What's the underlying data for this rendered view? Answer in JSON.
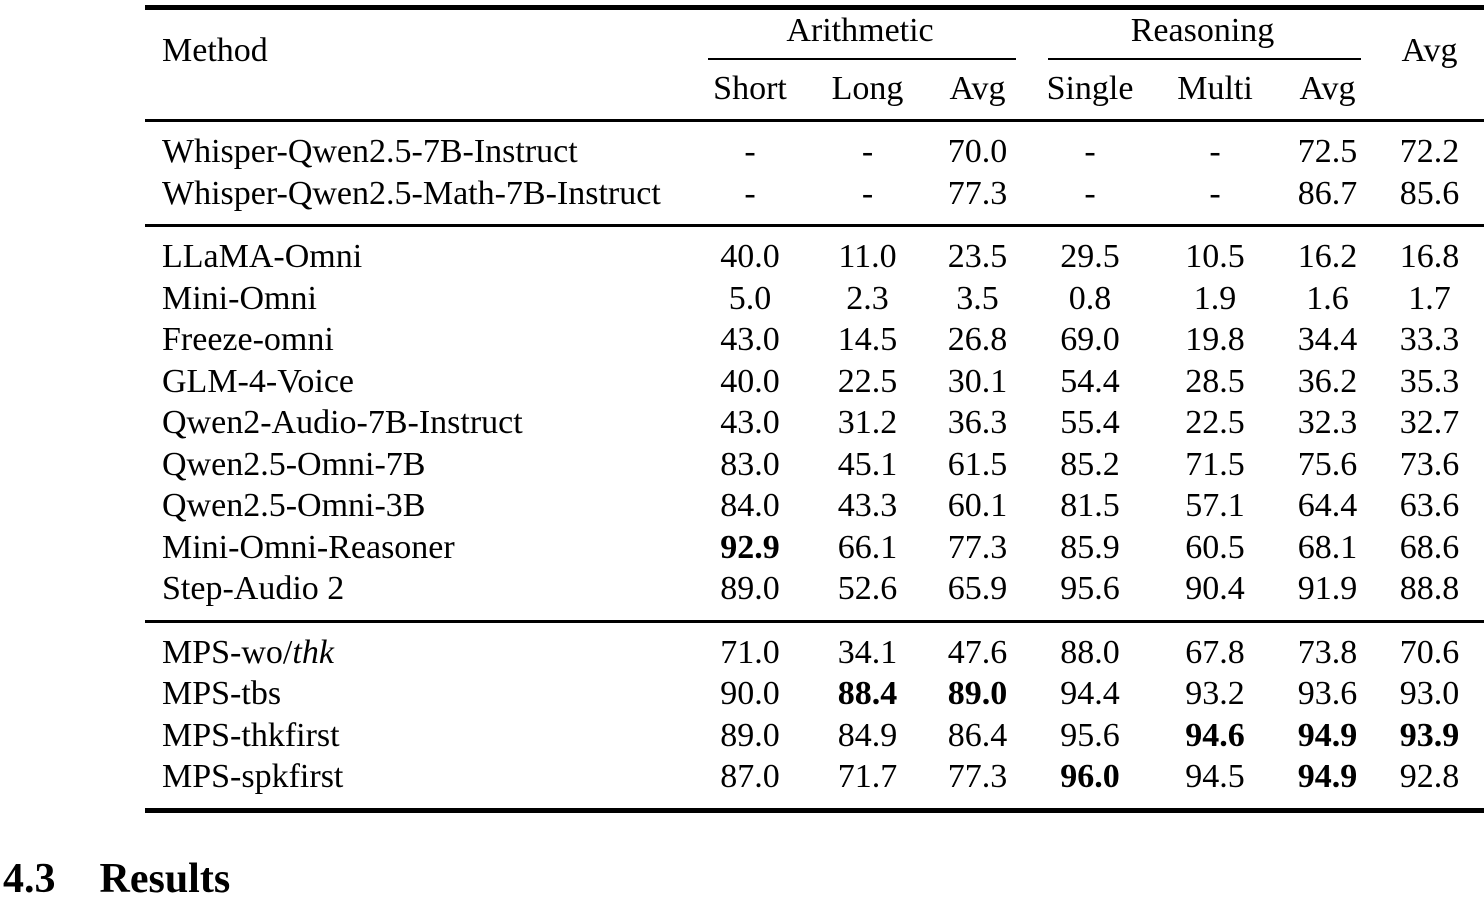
{
  "table": {
    "headers": {
      "method": "Method",
      "arithmetic": "Arithmetic",
      "reasoning": "Reasoning",
      "avg": "Avg",
      "subheaders": [
        "Short",
        "Long",
        "Avg",
        "Single",
        "Multi",
        "Avg"
      ]
    },
    "groups": [
      {
        "rows": [
          {
            "method": "Whisper-Qwen2.5-7B-Instruct",
            "method_italic": "",
            "values": [
              "-",
              "-",
              "70.0",
              "-",
              "-",
              "72.5",
              "72.2"
            ],
            "bold": [
              0,
              0,
              0,
              0,
              0,
              0,
              0
            ]
          },
          {
            "method": "Whisper-Qwen2.5-Math-7B-Instruct",
            "method_italic": "",
            "values": [
              "-",
              "-",
              "77.3",
              "-",
              "-",
              "86.7",
              "85.6"
            ],
            "bold": [
              0,
              0,
              0,
              0,
              0,
              0,
              0
            ]
          }
        ]
      },
      {
        "rows": [
          {
            "method": "LLaMA-Omni",
            "method_italic": "",
            "values": [
              "40.0",
              "11.0",
              "23.5",
              "29.5",
              "10.5",
              "16.2",
              "16.8"
            ],
            "bold": [
              0,
              0,
              0,
              0,
              0,
              0,
              0
            ]
          },
          {
            "method": "Mini-Omni",
            "method_italic": "",
            "values": [
              "5.0",
              "2.3",
              "3.5",
              "0.8",
              "1.9",
              "1.6",
              "1.7"
            ],
            "bold": [
              0,
              0,
              0,
              0,
              0,
              0,
              0
            ]
          },
          {
            "method": "Freeze-omni",
            "method_italic": "",
            "values": [
              "43.0",
              "14.5",
              "26.8",
              "69.0",
              "19.8",
              "34.4",
              "33.3"
            ],
            "bold": [
              0,
              0,
              0,
              0,
              0,
              0,
              0
            ]
          },
          {
            "method": "GLM-4-Voice",
            "method_italic": "",
            "values": [
              "40.0",
              "22.5",
              "30.1",
              "54.4",
              "28.5",
              "36.2",
              "35.3"
            ],
            "bold": [
              0,
              0,
              0,
              0,
              0,
              0,
              0
            ]
          },
          {
            "method": "Qwen2-Audio-7B-Instruct",
            "method_italic": "",
            "values": [
              "43.0",
              "31.2",
              "36.3",
              "55.4",
              "22.5",
              "32.3",
              "32.7"
            ],
            "bold": [
              0,
              0,
              0,
              0,
              0,
              0,
              0
            ]
          },
          {
            "method": "Qwen2.5-Omni-7B",
            "method_italic": "",
            "values": [
              "83.0",
              "45.1",
              "61.5",
              "85.2",
              "71.5",
              "75.6",
              "73.6"
            ],
            "bold": [
              0,
              0,
              0,
              0,
              0,
              0,
              0
            ]
          },
          {
            "method": "Qwen2.5-Omni-3B",
            "method_italic": "",
            "values": [
              "84.0",
              "43.3",
              "60.1",
              "81.5",
              "57.1",
              "64.4",
              "63.6"
            ],
            "bold": [
              0,
              0,
              0,
              0,
              0,
              0,
              0
            ]
          },
          {
            "method": "Mini-Omni-Reasoner",
            "method_italic": "",
            "values": [
              "92.9",
              "66.1",
              "77.3",
              "85.9",
              "60.5",
              "68.1",
              "68.6"
            ],
            "bold": [
              1,
              0,
              0,
              0,
              0,
              0,
              0
            ]
          },
          {
            "method": "Step-Audio 2",
            "method_italic": "",
            "values": [
              "89.0",
              "52.6",
              "65.9",
              "95.6",
              "90.4",
              "91.9",
              "88.8"
            ],
            "bold": [
              0,
              0,
              0,
              0,
              0,
              0,
              0
            ]
          }
        ]
      },
      {
        "rows": [
          {
            "method": "MPS-wo/",
            "method_italic": "thk",
            "values": [
              "71.0",
              "34.1",
              "47.6",
              "88.0",
              "67.8",
              "73.8",
              "70.6"
            ],
            "bold": [
              0,
              0,
              0,
              0,
              0,
              0,
              0
            ]
          },
          {
            "method": "MPS-tbs",
            "method_italic": "",
            "values": [
              "90.0",
              "88.4",
              "89.0",
              "94.4",
              "93.2",
              "93.6",
              "93.0"
            ],
            "bold": [
              0,
              1,
              1,
              0,
              0,
              0,
              0
            ]
          },
          {
            "method": "MPS-thkfirst",
            "method_italic": "",
            "values": [
              "89.0",
              "84.9",
              "86.4",
              "95.6",
              "94.6",
              "94.9",
              "93.9"
            ],
            "bold": [
              0,
              0,
              0,
              0,
              1,
              1,
              1
            ]
          },
          {
            "method": "MPS-spkfirst",
            "method_italic": "",
            "values": [
              "87.0",
              "71.7",
              "77.3",
              "96.0",
              "94.5",
              "94.9",
              "92.8"
            ],
            "bold": [
              0,
              0,
              0,
              1,
              0,
              1,
              0
            ]
          }
        ]
      }
    ]
  },
  "section_heading": {
    "number": "4.3",
    "title": "Results"
  }
}
